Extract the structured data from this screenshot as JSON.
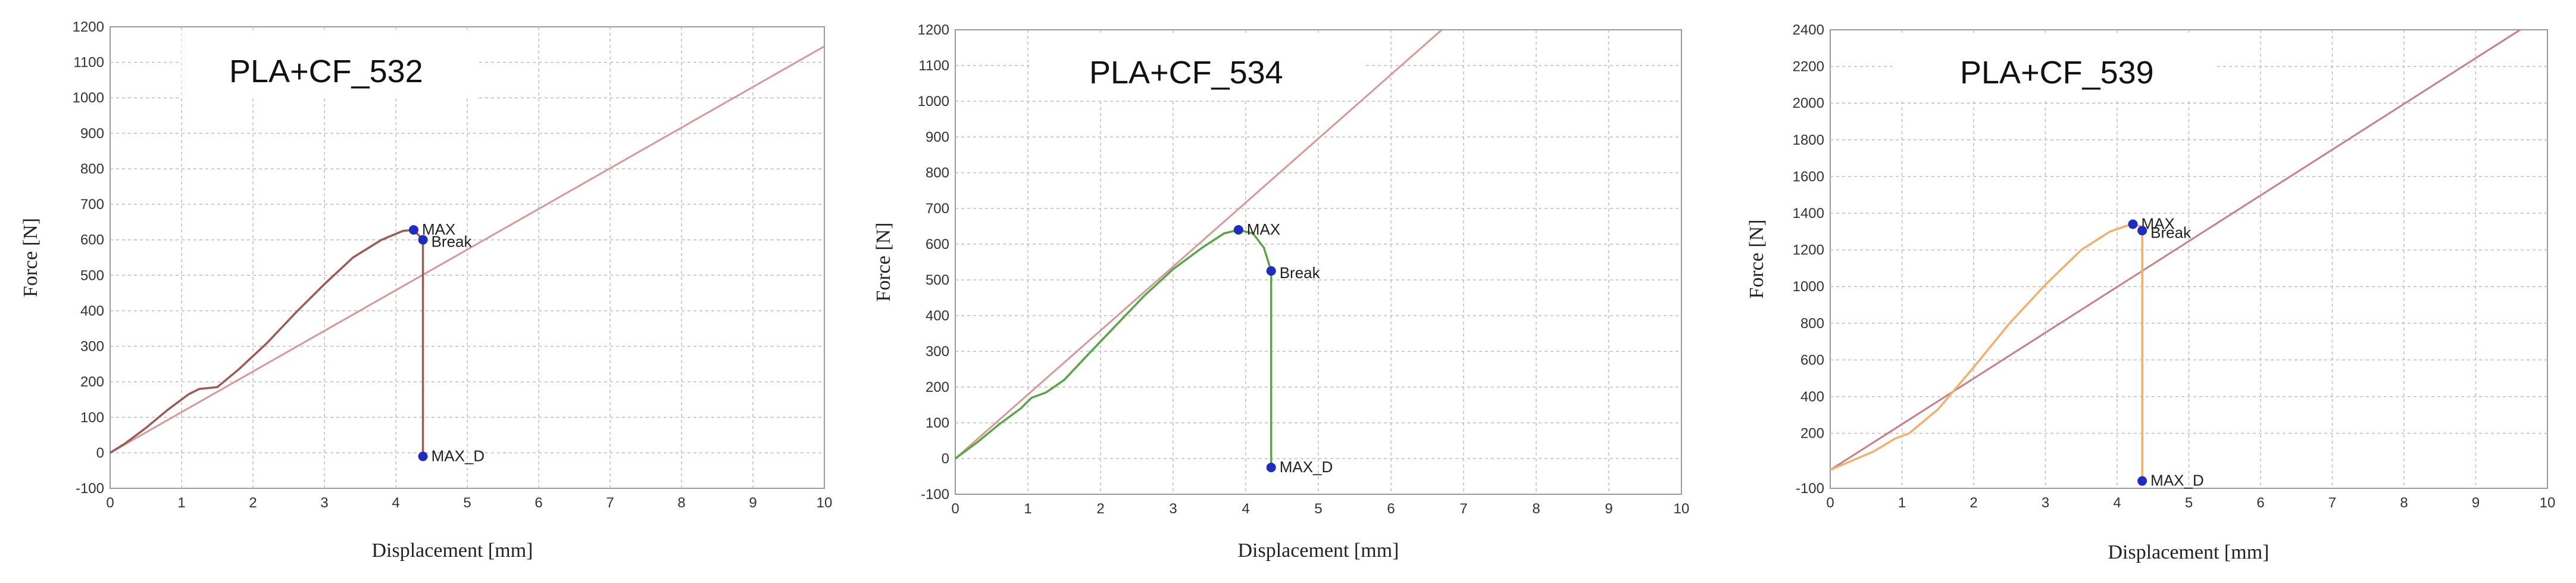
{
  "chart_data": [
    {
      "type": "line",
      "title": "PLA+CF_532",
      "xlabel": "Displacement [mm]",
      "ylabel": "Force [N]",
      "xlim": [
        0,
        10
      ],
      "ylim": [
        -100,
        1200
      ],
      "xticks": [
        0,
        1,
        2,
        3,
        4,
        5,
        6,
        7,
        8,
        9,
        10
      ],
      "yticks": [
        -100,
        0,
        100,
        200,
        300,
        400,
        500,
        600,
        700,
        800,
        900,
        1000,
        1100,
        1200
      ],
      "grid": true,
      "curve_color": "#9a5a55",
      "line_color": "#d49a9a",
      "curve": [
        [
          0,
          0
        ],
        [
          0.2,
          25
        ],
        [
          0.5,
          70
        ],
        [
          0.8,
          120
        ],
        [
          1.1,
          165
        ],
        [
          1.25,
          180
        ],
        [
          1.5,
          185
        ],
        [
          1.8,
          235
        ],
        [
          2.2,
          310
        ],
        [
          2.6,
          395
        ],
        [
          3.0,
          475
        ],
        [
          3.4,
          550
        ],
        [
          3.8,
          600
        ],
        [
          4.1,
          625
        ],
        [
          4.25,
          628
        ],
        [
          4.38,
          600
        ],
        [
          4.38,
          -10
        ]
      ],
      "reference_line": [
        [
          0,
          0
        ],
        [
          10,
          1145
        ]
      ],
      "markers": [
        {
          "label": "MAX",
          "x": 4.25,
          "y": 628
        },
        {
          "label": "Break",
          "x": 4.38,
          "y": 600
        },
        {
          "label": "MAX_D",
          "x": 4.38,
          "y": -10
        }
      ]
    },
    {
      "type": "line",
      "title": "PLA+CF_534",
      "xlabel": "Displacement [mm]",
      "ylabel": "Force [N]",
      "xlim": [
        0,
        10
      ],
      "ylim": [
        -100,
        1200
      ],
      "xticks": [
        0,
        1,
        2,
        3,
        4,
        5,
        6,
        7,
        8,
        9,
        10
      ],
      "yticks": [
        -100,
        0,
        100,
        200,
        300,
        400,
        500,
        600,
        700,
        800,
        900,
        1000,
        1100,
        1200
      ],
      "grid": true,
      "curve_color": "#5da34a",
      "line_color": "#d49a9a",
      "curve": [
        [
          0,
          0
        ],
        [
          0.3,
          45
        ],
        [
          0.6,
          95
        ],
        [
          0.9,
          140
        ],
        [
          1.05,
          170
        ],
        [
          1.25,
          185
        ],
        [
          1.5,
          220
        ],
        [
          1.8,
          285
        ],
        [
          2.2,
          370
        ],
        [
          2.6,
          455
        ],
        [
          3.0,
          530
        ],
        [
          3.4,
          590
        ],
        [
          3.7,
          630
        ],
        [
          3.9,
          640
        ],
        [
          4.1,
          630
        ],
        [
          4.25,
          590
        ],
        [
          4.35,
          525
        ],
        [
          4.35,
          -25
        ]
      ],
      "reference_line": [
        [
          0,
          0
        ],
        [
          6.7,
          1200
        ]
      ],
      "markers": [
        {
          "label": "MAX",
          "x": 3.9,
          "y": 640
        },
        {
          "label": "Break",
          "x": 4.35,
          "y": 525
        },
        {
          "label": "MAX_D",
          "x": 4.35,
          "y": -25
        }
      ]
    },
    {
      "type": "line",
      "title": "PLA+CF_539",
      "xlabel": "Displacement [mm]",
      "ylabel": "Force [N]",
      "xlim": [
        0,
        10
      ],
      "ylim": [
        -100,
        2400
      ],
      "xticks": [
        0,
        1,
        2,
        3,
        4,
        5,
        6,
        7,
        8,
        9,
        10
      ],
      "yticks": [
        -100,
        200,
        400,
        600,
        800,
        1000,
        1200,
        1400,
        1600,
        1800,
        2000,
        2200,
        2400
      ],
      "grid": true,
      "curve_color": "#f0b070",
      "line_color": "#c77f8a",
      "curve": [
        [
          0,
          0
        ],
        [
          0.3,
          50
        ],
        [
          0.6,
          100
        ],
        [
          0.9,
          170
        ],
        [
          1.1,
          200
        ],
        [
          1.5,
          330
        ],
        [
          2.0,
          560
        ],
        [
          2.5,
          800
        ],
        [
          3.0,
          1010
        ],
        [
          3.5,
          1200
        ],
        [
          3.9,
          1300
        ],
        [
          4.2,
          1340
        ],
        [
          4.32,
          1330
        ],
        [
          4.35,
          1300
        ],
        [
          4.35,
          -60
        ]
      ],
      "reference_line": [
        [
          0,
          0
        ],
        [
          9.7,
          2420
        ]
      ],
      "markers": [
        {
          "label": "MAX",
          "x": 4.22,
          "y": 1340
        },
        {
          "label": "Break",
          "x": 4.35,
          "y": 1305
        },
        {
          "label": "MAX_D",
          "x": 4.35,
          "y": -60
        }
      ]
    }
  ]
}
